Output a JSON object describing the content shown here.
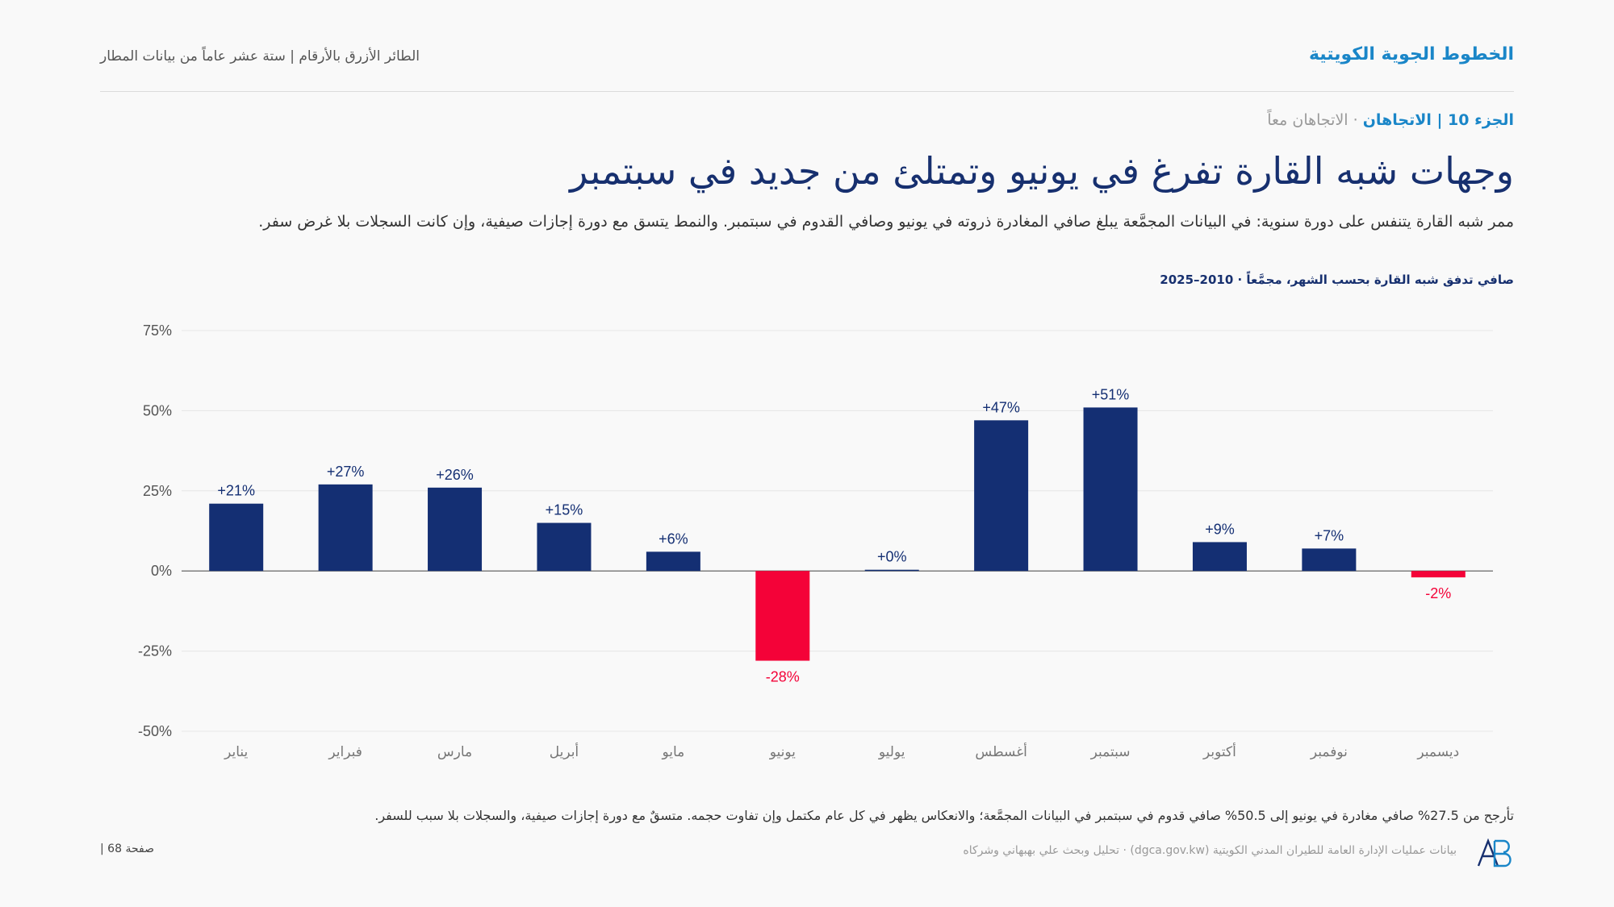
{
  "header": {
    "brand": "الخطوط الجوية الكويتية",
    "subtitle": "الطائر الأزرق بالأرقام | ستة عشر عاماً من بيانات المطار"
  },
  "breadcrumb": {
    "part": "الجزء 10 | الاتجاهان",
    "separator": "·",
    "topic": "الاتجاهان معاً"
  },
  "title": "وجهات شبه القارة تفرغ في يونيو وتمتلئ من جديد في سبتمبر",
  "lede": "ممر شبه القارة يتنفس على دورة سنوية: في البيانات المجمَّعة يبلغ صافي المغادرة ذروته في يونيو وصافي القدوم في سبتمبر. والنمط يتسق مع دورة إجازات صيفية، وإن كانت السجلات بلا غرض سفر.",
  "chart_title": "صافي تدفق شبه القارة بحسب الشهر، مجمَّعاً · 2010–2025",
  "chart_data": {
    "type": "bar",
    "categories": [
      "يناير",
      "فبراير",
      "مارس",
      "أبريل",
      "مايو",
      "يونيو",
      "يوليو",
      "أغسطس",
      "سبتمبر",
      "أكتوبر",
      "نوفمبر",
      "ديسمبر"
    ],
    "values": [
      21,
      27,
      26,
      15,
      6,
      -28,
      0,
      47,
      51,
      9,
      7,
      -2
    ],
    "value_labels": [
      "+21%",
      "+27%",
      "+26%",
      "+15%",
      "+6%",
      "-28%",
      "+0%",
      "+47%",
      "+51%",
      "+9%",
      "+7%",
      "-2%"
    ],
    "yticks": [
      75,
      50,
      25,
      0,
      -25,
      -50
    ],
    "ytick_labels": [
      "75%",
      "50%",
      "25%",
      "0%",
      "-25%",
      "-50%"
    ],
    "ylim": [
      -50,
      75
    ],
    "grid": true,
    "colors": {
      "positive": "#142f73",
      "negative": "#f40238",
      "grid": "#e6e6e6",
      "axis": "#555555"
    }
  },
  "caption": "تأرجح من 27.5% صافي مغادرة في يونيو إلى 50.5% صافي قدوم في سبتمبر في البيانات المجمَّعة؛ والانعكاس يظهر في كل عام مكتمل وإن تفاوت حجمه. متسقٌ مع دورة إجازات صيفية، والسجلات بلا سبب للسفر.",
  "footer": {
    "page": "صفحة 68 |",
    "source": "بيانات عمليات الإدارة العامة للطيران المدني الكويتية (dgca.gov.kw) · تحليل وبحث علي بهبهاني وشركاه",
    "logo_text": "AB"
  }
}
